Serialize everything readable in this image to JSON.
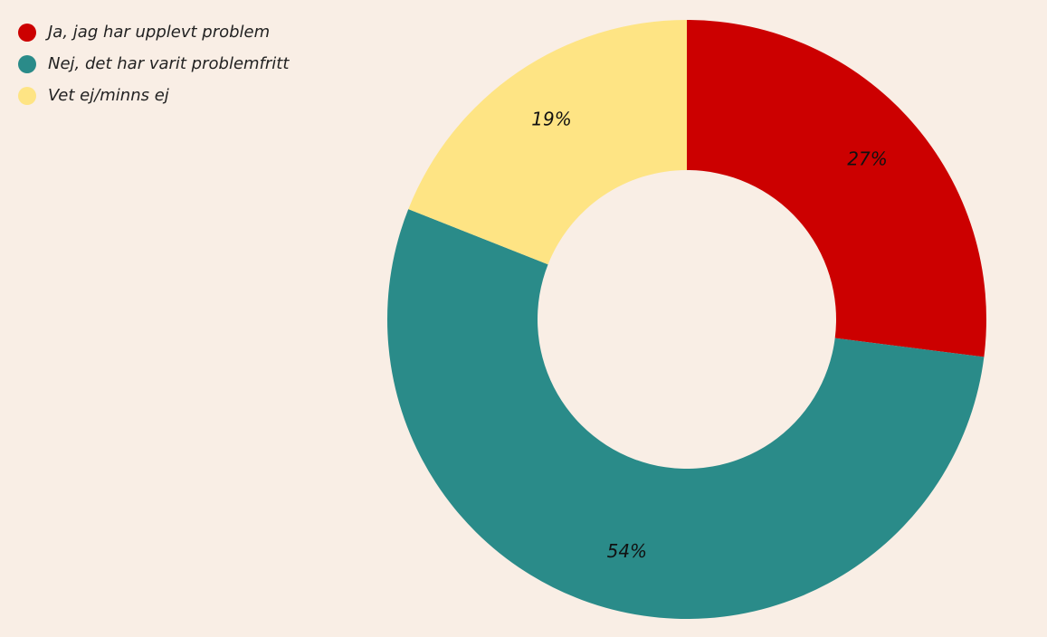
{
  "chart_data": {
    "type": "pie",
    "variant": "donut",
    "categories": [
      "Ja, jag har upplevt problem",
      "Nej, det har varit problemfritt",
      "Vet ej/minns ej"
    ],
    "values": [
      27,
      54,
      19
    ],
    "value_labels": [
      "27%",
      "54%",
      "19%"
    ],
    "colors": [
      "#cc0000",
      "#2a8b89",
      "#fee484"
    ],
    "legend_position": "top-left"
  },
  "legend": {
    "items": [
      {
        "label": "Ja, jag har upplevt problem",
        "color": "#cc0000"
      },
      {
        "label": "Nej, det har varit problemfritt",
        "color": "#2a8b89"
      },
      {
        "label": "Vet ej/minns ej",
        "color": "#fee484"
      }
    ]
  },
  "background_color": "#f9eee5"
}
